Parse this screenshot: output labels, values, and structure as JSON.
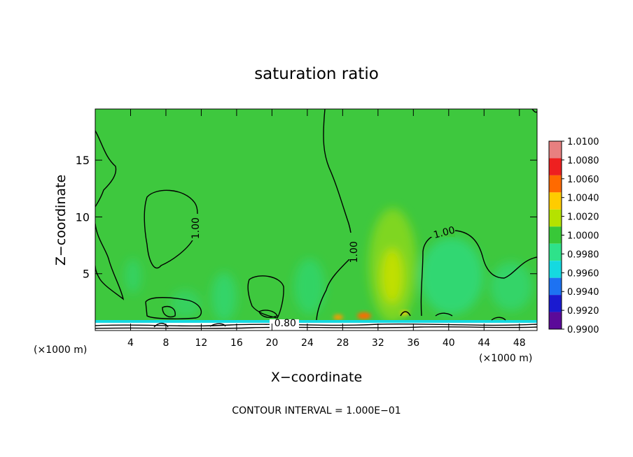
{
  "chart_data": {
    "type": "heatmap",
    "title": "saturation ratio",
    "xlabel": "X−coordinate",
    "ylabel": "Z−coordinate",
    "x_unit": "(×1000 m)",
    "xlim": [
      0,
      50
    ],
    "ylim": [
      0,
      19.5
    ],
    "x_ticks": [
      4,
      8,
      12,
      16,
      20,
      24,
      28,
      32,
      36,
      40,
      44,
      48
    ],
    "y_ticks": [
      5,
      10,
      15
    ],
    "footer": "CONTOUR INTERVAL = 1.000E−01",
    "contour_labels": [
      {
        "text": "1.00",
        "x": 11.4,
        "z": 9.0,
        "angle": -90
      },
      {
        "text": "1.00",
        "x": 29.3,
        "z": 6.9,
        "angle": -90
      },
      {
        "text": "1.00",
        "x": 39.5,
        "z": 8.6,
        "angle": -15
      },
      {
        "text": "0.80",
        "x": 21.5,
        "z": 0.6,
        "angle": 0
      }
    ],
    "colorbar": {
      "levels": [
        "1.0100",
        "1.0080",
        "1.0060",
        "1.0040",
        "1.0020",
        "1.0000",
        "0.9980",
        "0.9960",
        "0.9940",
        "0.9920",
        "0.9900"
      ],
      "colors": [
        "#e88080",
        "#ee2020",
        "#ff6a00",
        "#ffcc00",
        "#b5e200",
        "#38c838",
        "#2ee28a",
        "#15d9e0",
        "#1d72f2",
        "#1a1ad0",
        "#5b0a99"
      ]
    }
  }
}
